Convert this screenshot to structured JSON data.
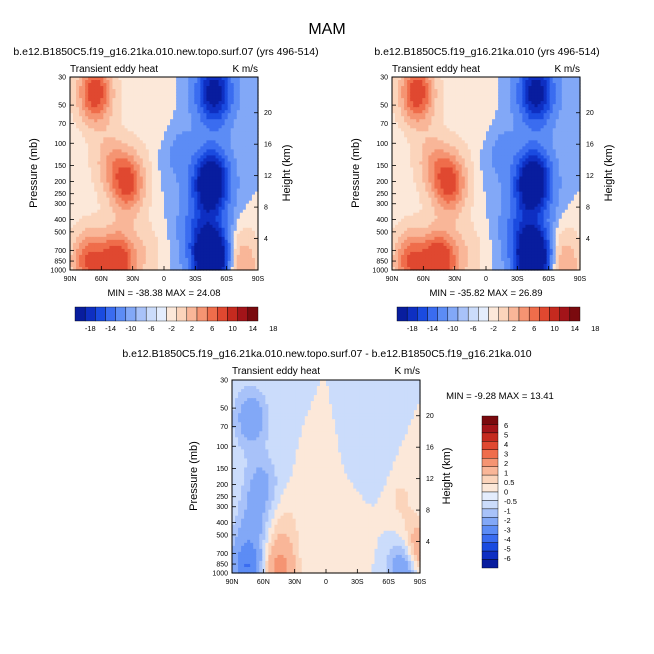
{
  "figure_title": "MAM",
  "colors": {
    "blues": [
      "#081d9e",
      "#0e2fc2",
      "#1a4be0",
      "#3a6cf0",
      "#5c8cf5",
      "#82a8f7",
      "#a8c2f9",
      "#cbdcfb",
      "#e4edfd"
    ],
    "reds": [
      "#fce8d9",
      "#fbd4bb",
      "#f9b698",
      "#f59472",
      "#ef6d4b",
      "#e04830",
      "#c52a1f",
      "#a31419",
      "#7a0a0e"
    ]
  },
  "chart_data": [
    {
      "type": "heatmap",
      "title": "b.e12.B1850C5.f19_g16.21ka.010.new.topo.surf.07 (yrs 496-514)",
      "left_label": "Transient eddy heat",
      "right_label": "K m/s",
      "xlabel": "",
      "ylabel": "Pressure (mb)",
      "ylabel_right": "Height (km)",
      "x_ticks": [
        "90N",
        "60N",
        "30N",
        "0",
        "30S",
        "60S",
        "90S"
      ],
      "xlim": [
        90,
        -90
      ],
      "y_ticks": [
        "30",
        "50",
        "70",
        "100",
        "150",
        "200",
        "250",
        "300",
        "400",
        "500",
        "700",
        "850",
        "1000"
      ],
      "y_tick_values": [
        30,
        50,
        70,
        100,
        150,
        200,
        250,
        300,
        400,
        500,
        700,
        850,
        1000
      ],
      "ylim": [
        30,
        1000
      ],
      "y_log": true,
      "y_right_ticks": [
        "4",
        "8",
        "12",
        "16",
        "20"
      ],
      "stats": "MIN = -38.38   MAX =  24.08",
      "features": [
        {
          "lat": 66,
          "p": 40,
          "value": 22
        },
        {
          "lat": 35,
          "p": 205,
          "value": 20
        },
        {
          "lat": 45,
          "p": 880,
          "value": 24
        },
        {
          "lat": 72,
          "p": 850,
          "value": 18
        },
        {
          "lat": 52,
          "p": 140,
          "value": 8
        },
        {
          "lat": 20,
          "p": 750,
          "value": 5
        },
        {
          "lat": 10,
          "p": 60,
          "value": 2
        },
        {
          "lat": -48,
          "p": 40,
          "value": -22
        },
        {
          "lat": -45,
          "p": 205,
          "value": -30
        },
        {
          "lat": -45,
          "p": 800,
          "value": -38
        },
        {
          "lat": -30,
          "p": 450,
          "value": -6
        },
        {
          "lat": -15,
          "p": 120,
          "value": -3
        },
        {
          "lat": -75,
          "p": 900,
          "value": 10
        }
      ],
      "colorbar": {
        "labels": [
          "-18",
          "-14",
          "-10",
          "-6",
          "-2",
          "2",
          "6",
          "10",
          "14",
          "18"
        ]
      }
    },
    {
      "type": "heatmap",
      "title": "b.e12.B1850C5.f19_g16.21ka.010 (yrs 496-514)",
      "left_label": "Transient eddy heat",
      "right_label": "K m/s",
      "xlabel": "",
      "ylabel": "Pressure (mb)",
      "ylabel_right": "Height (km)",
      "x_ticks": [
        "90N",
        "60N",
        "30N",
        "0",
        "30S",
        "60S",
        "90S"
      ],
      "xlim": [
        90,
        -90
      ],
      "y_ticks": [
        "30",
        "50",
        "70",
        "100",
        "150",
        "200",
        "250",
        "300",
        "400",
        "500",
        "700",
        "850",
        "1000"
      ],
      "y_tick_values": [
        30,
        50,
        70,
        100,
        150,
        200,
        250,
        300,
        400,
        500,
        700,
        850,
        1000
      ],
      "ylim": [
        30,
        1000
      ],
      "y_log": true,
      "y_right_ticks": [
        "4",
        "8",
        "12",
        "16",
        "20"
      ],
      "stats": "MIN = -35.82   MAX =  26.89",
      "features": [
        {
          "lat": 66,
          "p": 40,
          "value": 22
        },
        {
          "lat": 35,
          "p": 205,
          "value": 20
        },
        {
          "lat": 45,
          "p": 880,
          "value": 26
        },
        {
          "lat": 72,
          "p": 850,
          "value": 18
        },
        {
          "lat": 52,
          "p": 140,
          "value": 8
        },
        {
          "lat": 20,
          "p": 750,
          "value": 5
        },
        {
          "lat": 10,
          "p": 60,
          "value": 2
        },
        {
          "lat": -48,
          "p": 40,
          "value": -22
        },
        {
          "lat": -45,
          "p": 205,
          "value": -30
        },
        {
          "lat": -45,
          "p": 800,
          "value": -36
        },
        {
          "lat": -30,
          "p": 450,
          "value": -6
        },
        {
          "lat": -15,
          "p": 120,
          "value": -3
        },
        {
          "lat": -75,
          "p": 900,
          "value": 10
        }
      ],
      "colorbar": {
        "labels": [
          "-18",
          "-14",
          "-10",
          "-6",
          "-2",
          "2",
          "6",
          "10",
          "14",
          "18"
        ]
      }
    },
    {
      "type": "heatmap",
      "title": "b.e12.B1850C5.f19_g16.21ka.010.new.topo.surf.07 - b.e12.B1850C5.f19_g16.21ka.010",
      "left_label": "Transient eddy heat",
      "right_label": "K m/s",
      "xlabel": "",
      "ylabel": "Pressure (mb)",
      "ylabel_right": "Height (km)",
      "x_ticks": [
        "90N",
        "60N",
        "30N",
        "0",
        "30S",
        "60S",
        "90S"
      ],
      "xlim": [
        90,
        -90
      ],
      "y_ticks": [
        "30",
        "50",
        "70",
        "100",
        "150",
        "200",
        "250",
        "300",
        "400",
        "500",
        "700",
        "850",
        "1000"
      ],
      "y_tick_values": [
        30,
        50,
        70,
        100,
        150,
        200,
        250,
        300,
        400,
        500,
        700,
        850,
        1000
      ],
      "ylim": [
        30,
        1000
      ],
      "y_log": true,
      "y_right_ticks": [
        "4",
        "8",
        "12",
        "16",
        "20"
      ],
      "stats": "MIN = -9.28   MAX = 13.41",
      "features": [
        {
          "lat": 72,
          "p": 60,
          "value": -1.6
        },
        {
          "lat": 62,
          "p": 200,
          "value": -1.2
        },
        {
          "lat": 70,
          "p": 400,
          "value": -1.0
        },
        {
          "lat": 40,
          "p": 420,
          "value": 0.6
        },
        {
          "lat": 45,
          "p": 950,
          "value": 2.5
        },
        {
          "lat": 75,
          "p": 900,
          "value": -3
        },
        {
          "lat": 10,
          "p": 300,
          "value": 0.3
        },
        {
          "lat": -25,
          "p": 500,
          "value": 0.4
        },
        {
          "lat": -50,
          "p": 150,
          "value": -0.4
        },
        {
          "lat": -80,
          "p": 850,
          "value": -5
        },
        {
          "lat": -85,
          "p": 750,
          "value": 5
        },
        {
          "lat": -70,
          "p": 250,
          "value": 0.6
        }
      ],
      "colorbar": {
        "labels": [
          "6",
          "5",
          "4",
          "3",
          "2",
          "1",
          "0.5",
          "0",
          "-0.5",
          "-1",
          "-2",
          "-3",
          "-4",
          "-5",
          "-6"
        ]
      }
    }
  ]
}
